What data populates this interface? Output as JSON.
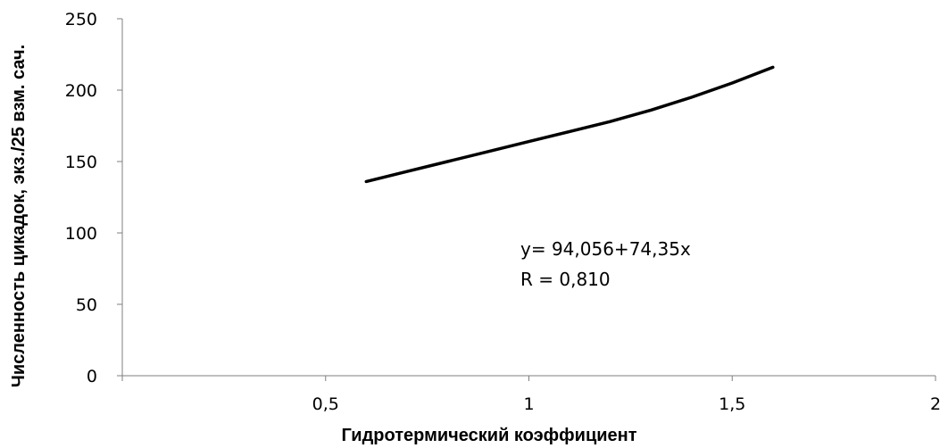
{
  "chart_data": {
    "type": "line",
    "title": "",
    "xlabel": "Гидротермический коэффициент",
    "ylabel": "Численность цикадок, экз./25 взм. сач.",
    "xlim": [
      0,
      2
    ],
    "ylim": [
      0,
      250
    ],
    "x_ticks": [
      "0,5",
      "1",
      "1,5",
      "2"
    ],
    "y_ticks": [
      "0",
      "50",
      "100",
      "150",
      "200",
      "250"
    ],
    "grid": false,
    "legend": "none",
    "series": [
      {
        "color": "#000000",
        "x": [
          0.6,
          0.7,
          0.8,
          0.9,
          1.0,
          1.1,
          1.2,
          1.3,
          1.4,
          1.5,
          1.6
        ],
        "y": [
          136,
          143,
          150,
          157,
          164,
          171,
          178,
          186,
          195,
          205,
          216
        ]
      }
    ],
    "annotations": {
      "equation": "y= 94,056+74,35x",
      "r_value": "R = 0,810"
    }
  }
}
